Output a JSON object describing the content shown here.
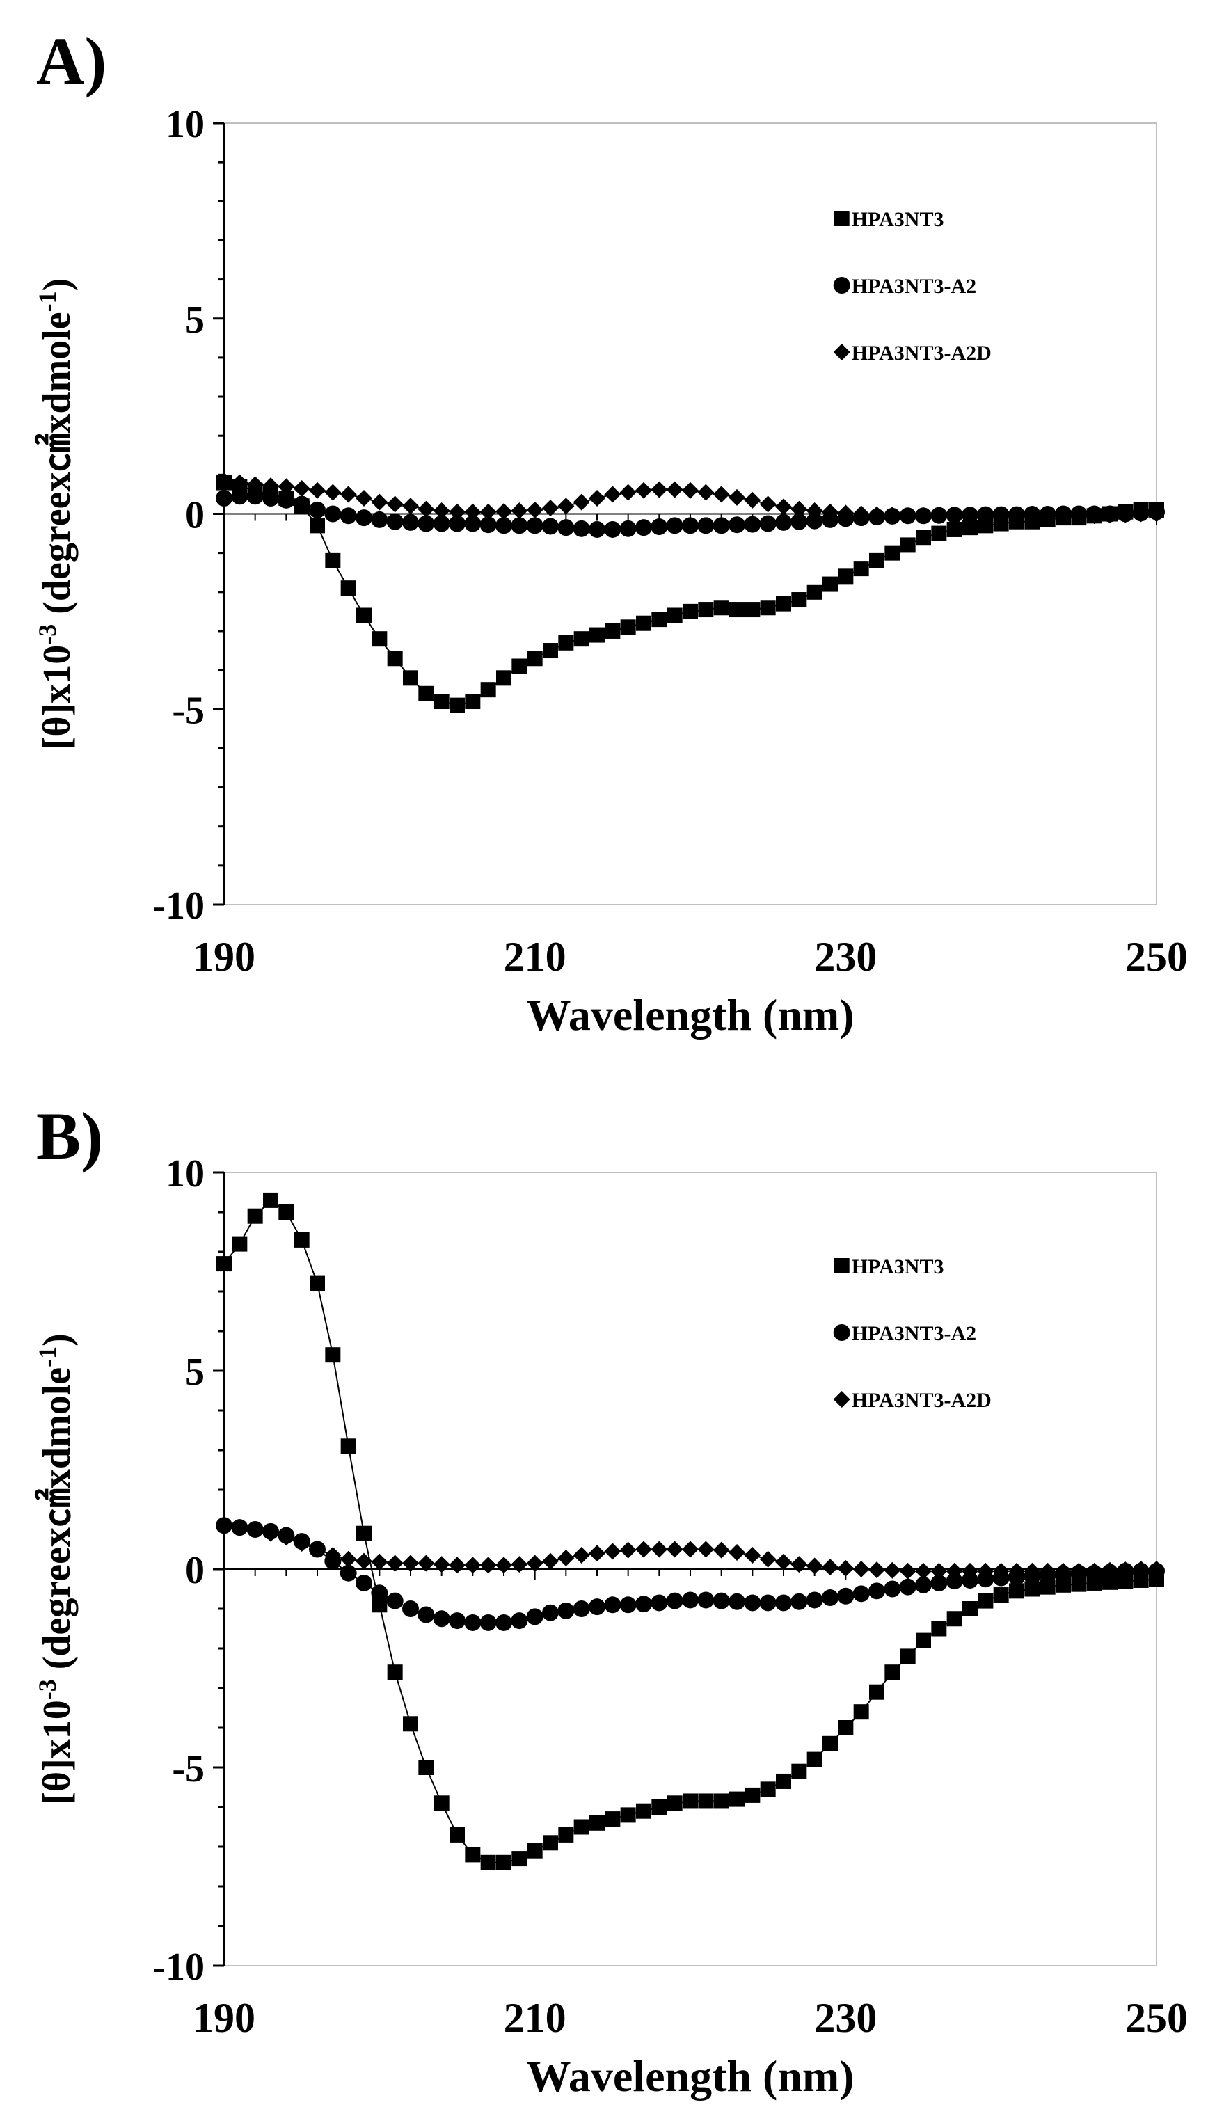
{
  "panels": [
    {
      "label": "A)"
    },
    {
      "label": "B)"
    }
  ],
  "chart_data": [
    {
      "type": "scatter",
      "panel": "A)",
      "xlabel": "Wavelength (nm)",
      "ylabel_parts": [
        "[θ]x10",
        "-3",
        " (degreex㎠xdmole",
        "-1",
        ")"
      ],
      "xlim": [
        190,
        250
      ],
      "ylim": [
        -10,
        10
      ],
      "xticks": [
        190,
        210,
        230,
        250
      ],
      "yticks": [
        10,
        5,
        0,
        -5,
        -10
      ],
      "xtick_labels": [
        "190",
        "210",
        "230",
        "250"
      ],
      "ytick_labels": [
        "10",
        "5",
        "0",
        "-5",
        "-10"
      ],
      "legend_position": "top-right",
      "series": [
        {
          "name": "HPA3NT3",
          "marker": "square",
          "x": [
            190,
            191,
            192,
            193,
            194,
            195,
            196,
            197,
            198,
            199,
            200,
            201,
            202,
            203,
            204,
            205,
            206,
            207,
            208,
            209,
            210,
            211,
            212,
            213,
            214,
            215,
            216,
            217,
            218,
            219,
            220,
            221,
            222,
            223,
            224,
            225,
            226,
            227,
            228,
            229,
            230,
            231,
            232,
            233,
            234,
            235,
            236,
            237,
            238,
            239,
            240,
            241,
            242,
            243,
            244,
            245,
            246,
            247,
            248,
            249,
            250
          ],
          "y": [
            0.8,
            0.7,
            0.6,
            0.5,
            0.4,
            0.2,
            -0.3,
            -1.2,
            -1.9,
            -2.6,
            -3.2,
            -3.7,
            -4.2,
            -4.6,
            -4.8,
            -4.9,
            -4.8,
            -4.5,
            -4.2,
            -3.9,
            -3.7,
            -3.5,
            -3.3,
            -3.2,
            -3.1,
            -3.0,
            -2.9,
            -2.8,
            -2.7,
            -2.6,
            -2.5,
            -2.45,
            -2.4,
            -2.45,
            -2.45,
            -2.4,
            -2.3,
            -2.2,
            -2.0,
            -1.8,
            -1.6,
            -1.4,
            -1.2,
            -1.0,
            -0.8,
            -0.6,
            -0.5,
            -0.4,
            -0.35,
            -0.3,
            -0.25,
            -0.2,
            -0.2,
            -0.15,
            -0.1,
            -0.1,
            -0.05,
            0.0,
            0.05,
            0.1,
            0.1
          ]
        },
        {
          "name": "HPA3NT3-A2",
          "marker": "circle",
          "x": [
            190,
            191,
            192,
            193,
            194,
            195,
            196,
            197,
            198,
            199,
            200,
            201,
            202,
            203,
            204,
            205,
            206,
            207,
            208,
            209,
            210,
            211,
            212,
            213,
            214,
            215,
            216,
            217,
            218,
            219,
            220,
            221,
            222,
            223,
            224,
            225,
            226,
            227,
            228,
            229,
            230,
            231,
            232,
            233,
            234,
            235,
            236,
            237,
            238,
            239,
            240,
            241,
            242,
            243,
            244,
            245,
            246,
            247,
            248,
            249,
            250
          ],
          "y": [
            0.4,
            0.45,
            0.45,
            0.4,
            0.35,
            0.25,
            0.1,
            0.0,
            -0.05,
            -0.1,
            -0.15,
            -0.2,
            -0.22,
            -0.25,
            -0.25,
            -0.25,
            -0.25,
            -0.28,
            -0.3,
            -0.3,
            -0.3,
            -0.32,
            -0.35,
            -0.38,
            -0.4,
            -0.4,
            -0.38,
            -0.35,
            -0.33,
            -0.3,
            -0.3,
            -0.3,
            -0.3,
            -0.28,
            -0.27,
            -0.25,
            -0.22,
            -0.2,
            -0.18,
            -0.15,
            -0.12,
            -0.1,
            -0.08,
            -0.06,
            -0.05,
            -0.05,
            -0.04,
            -0.03,
            -0.03,
            -0.02,
            -0.02,
            -0.02,
            -0.01,
            -0.01,
            0.0,
            0.0,
            0.0,
            0.0,
            0.0,
            0.02,
            0.05
          ]
        },
        {
          "name": "HPA3NT3-A2D",
          "marker": "diamond",
          "x": [
            190,
            191,
            192,
            193,
            194,
            195,
            196,
            197,
            198,
            199,
            200,
            201,
            202,
            203,
            204,
            205,
            206,
            207,
            208,
            209,
            210,
            211,
            212,
            213,
            214,
            215,
            216,
            217,
            218,
            219,
            220,
            221,
            222,
            223,
            224,
            225,
            226,
            227,
            228,
            229,
            230,
            231,
            232,
            233,
            234,
            235,
            236,
            237,
            238,
            239,
            240,
            241,
            242,
            243,
            244,
            245,
            246,
            247,
            248,
            249,
            250
          ],
          "y": [
            0.85,
            0.8,
            0.75,
            0.72,
            0.7,
            0.65,
            0.6,
            0.55,
            0.5,
            0.4,
            0.3,
            0.25,
            0.2,
            0.12,
            0.08,
            0.05,
            0.05,
            0.05,
            0.06,
            0.08,
            0.1,
            0.15,
            0.2,
            0.3,
            0.4,
            0.5,
            0.55,
            0.6,
            0.62,
            0.62,
            0.6,
            0.55,
            0.5,
            0.42,
            0.35,
            0.25,
            0.18,
            0.12,
            0.08,
            0.05,
            0.02,
            0.0,
            -0.02,
            -0.03,
            -0.05,
            -0.05,
            -0.05,
            -0.05,
            -0.05,
            -0.05,
            -0.05,
            -0.05,
            -0.05,
            -0.05,
            -0.05,
            -0.05,
            -0.05,
            -0.03,
            -0.02,
            0.0,
            0.0
          ]
        }
      ]
    },
    {
      "type": "scatter",
      "panel": "B)",
      "xlabel": "Wavelength (nm)",
      "ylabel_parts": [
        "[θ]x10",
        "-3",
        " (degreex㎠xdmole",
        "-1",
        ")"
      ],
      "xlim": [
        190,
        250
      ],
      "ylim": [
        -10,
        10
      ],
      "xticks": [
        190,
        210,
        230,
        250
      ],
      "yticks": [
        10,
        5,
        0,
        -5,
        -10
      ],
      "xtick_labels": [
        "190",
        "210",
        "230",
        "250"
      ],
      "ytick_labels": [
        "10",
        "5",
        "0",
        "-5",
        "-10"
      ],
      "legend_position": "top-right",
      "series": [
        {
          "name": "HPA3NT3",
          "marker": "square",
          "x": [
            190,
            191,
            192,
            193,
            194,
            195,
            196,
            197,
            198,
            199,
            200,
            201,
            202,
            203,
            204,
            205,
            206,
            207,
            208,
            209,
            210,
            211,
            212,
            213,
            214,
            215,
            216,
            217,
            218,
            219,
            220,
            221,
            222,
            223,
            224,
            225,
            226,
            227,
            228,
            229,
            230,
            231,
            232,
            233,
            234,
            235,
            236,
            237,
            238,
            239,
            240,
            241,
            242,
            243,
            244,
            245,
            246,
            247,
            248,
            249,
            250
          ],
          "y": [
            7.7,
            8.2,
            8.9,
            9.3,
            9.0,
            8.3,
            7.2,
            5.4,
            3.1,
            0.9,
            -0.9,
            -2.6,
            -3.9,
            -5.0,
            -5.9,
            -6.7,
            -7.2,
            -7.4,
            -7.4,
            -7.3,
            -7.1,
            -6.9,
            -6.7,
            -6.5,
            -6.4,
            -6.3,
            -6.2,
            -6.1,
            -6.0,
            -5.9,
            -5.85,
            -5.85,
            -5.85,
            -5.8,
            -5.7,
            -5.55,
            -5.35,
            -5.1,
            -4.8,
            -4.4,
            -4.0,
            -3.6,
            -3.1,
            -2.6,
            -2.2,
            -1.8,
            -1.5,
            -1.25,
            -1.0,
            -0.8,
            -0.65,
            -0.55,
            -0.5,
            -0.45,
            -0.4,
            -0.38,
            -0.35,
            -0.33,
            -0.3,
            -0.28,
            -0.25
          ]
        },
        {
          "name": "HPA3NT3-A2",
          "marker": "circle",
          "x": [
            190,
            191,
            192,
            193,
            194,
            195,
            196,
            197,
            198,
            199,
            200,
            201,
            202,
            203,
            204,
            205,
            206,
            207,
            208,
            209,
            210,
            211,
            212,
            213,
            214,
            215,
            216,
            217,
            218,
            219,
            220,
            221,
            222,
            223,
            224,
            225,
            226,
            227,
            228,
            229,
            230,
            231,
            232,
            233,
            234,
            235,
            236,
            237,
            238,
            239,
            240,
            241,
            242,
            243,
            244,
            245,
            246,
            247,
            248,
            249,
            250
          ],
          "y": [
            1.1,
            1.05,
            1.0,
            0.95,
            0.85,
            0.7,
            0.5,
            0.2,
            -0.1,
            -0.35,
            -0.6,
            -0.8,
            -1.0,
            -1.15,
            -1.25,
            -1.3,
            -1.35,
            -1.35,
            -1.35,
            -1.3,
            -1.2,
            -1.1,
            -1.05,
            -1.0,
            -0.95,
            -0.9,
            -0.9,
            -0.88,
            -0.85,
            -0.8,
            -0.78,
            -0.78,
            -0.8,
            -0.82,
            -0.85,
            -0.85,
            -0.85,
            -0.82,
            -0.78,
            -0.72,
            -0.68,
            -0.62,
            -0.55,
            -0.5,
            -0.45,
            -0.4,
            -0.35,
            -0.3,
            -0.28,
            -0.25,
            -0.22,
            -0.2,
            -0.18,
            -0.15,
            -0.12,
            -0.1,
            -0.1,
            -0.08,
            -0.05,
            -0.05,
            -0.05
          ]
        },
        {
          "name": "HPA3NT3-A2D",
          "marker": "diamond",
          "x": [
            190,
            191,
            192,
            193,
            194,
            195,
            196,
            197,
            198,
            199,
            200,
            201,
            202,
            203,
            204,
            205,
            206,
            207,
            208,
            209,
            210,
            211,
            212,
            213,
            214,
            215,
            216,
            217,
            218,
            219,
            220,
            221,
            222,
            223,
            224,
            225,
            226,
            227,
            228,
            229,
            230,
            231,
            232,
            233,
            234,
            235,
            236,
            237,
            238,
            239,
            240,
            241,
            242,
            243,
            244,
            245,
            246,
            247,
            248,
            249,
            250
          ],
          "y": [
            1.1,
            1.05,
            1.0,
            0.9,
            0.8,
            0.65,
            0.5,
            0.35,
            0.25,
            0.2,
            0.18,
            0.15,
            0.15,
            0.15,
            0.12,
            0.1,
            0.1,
            0.1,
            0.1,
            0.12,
            0.15,
            0.2,
            0.28,
            0.35,
            0.4,
            0.45,
            0.48,
            0.5,
            0.5,
            0.5,
            0.5,
            0.5,
            0.48,
            0.42,
            0.35,
            0.25,
            0.18,
            0.12,
            0.08,
            0.05,
            0.02,
            0.0,
            -0.02,
            -0.03,
            -0.05,
            -0.05,
            -0.05,
            -0.05,
            -0.05,
            -0.05,
            -0.05,
            -0.05,
            -0.05,
            -0.05,
            -0.05,
            -0.05,
            -0.05,
            -0.03,
            -0.02,
            0.0,
            0.0
          ]
        }
      ]
    }
  ]
}
